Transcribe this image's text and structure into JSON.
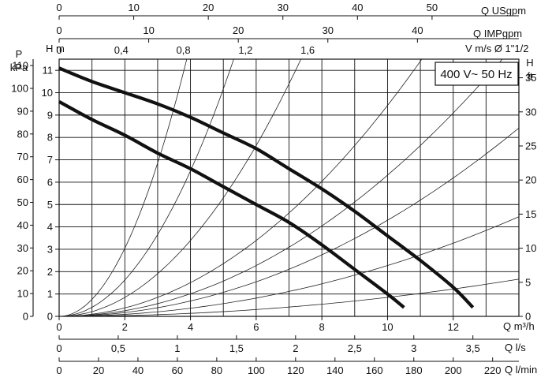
{
  "chart_data": {
    "type": "line",
    "title": "",
    "badge": "400 V~ 50 Hz",
    "grid": true,
    "x_main": {
      "label": "Q m³/h",
      "ticks": [
        "0",
        "2",
        "4",
        "6",
        "8",
        "10",
        "12"
      ],
      "xlim": [
        0,
        14
      ]
    },
    "y_main": {
      "label": "H m",
      "ticks": [
        "0",
        "1",
        "2",
        "3",
        "4",
        "5",
        "6",
        "7",
        "8",
        "9",
        "10",
        "11"
      ],
      "ylim": [
        0,
        11.5
      ]
    },
    "y_pressure": {
      "label_line1": "P",
      "label_line2": "kPa",
      "ticks": [
        "0",
        "10",
        "20",
        "30",
        "40",
        "50",
        "60",
        "70",
        "80",
        "90",
        "100",
        "110"
      ]
    },
    "y_feet": {
      "label_line1": "H",
      "label_line2": "ft",
      "ticks": [
        "0",
        "5",
        "10",
        "15",
        "20",
        "25",
        "30",
        "35"
      ]
    },
    "x_usgpm": {
      "label": "Q USgpm",
      "ticks": [
        "0",
        "10",
        "20",
        "30",
        "40",
        "50"
      ]
    },
    "x_impgpm": {
      "label": "Q IMPgpm",
      "ticks": [
        "0",
        "10",
        "20",
        "30",
        "40"
      ]
    },
    "x_velocity": {
      "label": "V m/s Ø 1\"1/2",
      "ticks": [
        "0",
        "0,4",
        "0,8",
        "1,2",
        "1,6"
      ]
    },
    "x_ls": {
      "label": "Q l/s",
      "ticks": [
        "0",
        "0,5",
        "1",
        "1,5",
        "2",
        "2,5",
        "3",
        "3,5"
      ]
    },
    "x_lmin": {
      "label": "Q l/min",
      "ticks": [
        "0",
        "20",
        "40",
        "60",
        "80",
        "100",
        "120",
        "140",
        "160",
        "180",
        "200",
        "220"
      ]
    },
    "series": [
      {
        "x": [
          0,
          1,
          2,
          3,
          4,
          5,
          6,
          7,
          8,
          9,
          10,
          11,
          12,
          12.6
        ],
        "y": [
          11.1,
          10.5,
          10.0,
          9.5,
          8.9,
          8.2,
          7.5,
          6.6,
          5.7,
          4.7,
          3.6,
          2.5,
          1.3,
          0.4
        ]
      },
      {
        "x": [
          0,
          1,
          2,
          3,
          4,
          5,
          6,
          7,
          8,
          9,
          10,
          10.5
        ],
        "y": [
          9.6,
          8.8,
          8.1,
          7.3,
          6.6,
          5.8,
          5.0,
          4.2,
          3.2,
          2.1,
          1.0,
          0.4
        ]
      }
    ],
    "system_curves": {
      "x_at_h11": [
        3.8,
        5.2,
        7.2,
        10.8,
        13.2,
        16.0,
        22.0,
        36.0
      ]
    }
  }
}
